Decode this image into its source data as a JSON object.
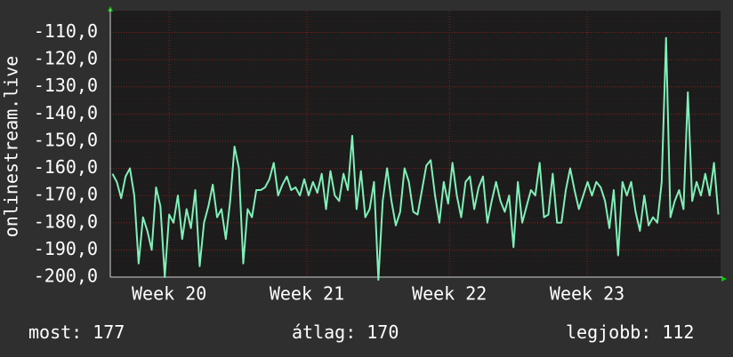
{
  "chart_data": {
    "type": "line",
    "ylabel": "onlinestream.live",
    "series": [
      {
        "name": "onlinestream.live",
        "color": "#80f0b8",
        "values": [
          -162,
          -165,
          -171,
          -163,
          -160,
          -170,
          -195,
          -178,
          -183,
          -190,
          -167,
          -174,
          -200,
          -177,
          -180,
          -170,
          -186,
          -175,
          -182,
          -168,
          -196,
          -180,
          -174,
          -166,
          -178,
          -175,
          -186,
          -172,
          -152,
          -160,
          -195,
          -175,
          -178,
          -168,
          -168,
          -167,
          -164,
          -158,
          -170,
          -166,
          -163,
          -168,
          -167,
          -170,
          -164,
          -170,
          -165,
          -169,
          -162,
          -175,
          -161,
          -170,
          -172,
          -162,
          -168,
          -148,
          -175,
          -161,
          -178,
          -175,
          -165,
          -201,
          -172,
          -160,
          -172,
          -181,
          -176,
          -160,
          -165,
          -176,
          -177,
          -168,
          -159,
          -157,
          -170,
          -180,
          -165,
          -173,
          -158,
          -170,
          -178,
          -165,
          -163,
          -175,
          -167,
          -163,
          -180,
          -172,
          -165,
          -172,
          -176,
          -170,
          -189,
          -165,
          -180,
          -174,
          -168,
          -170,
          -158,
          -178,
          -177,
          -162,
          -180,
          -180,
          -168,
          -160,
          -168,
          -175,
          -170,
          -165,
          -170,
          -165,
          -167,
          -172,
          -182,
          -168,
          -192,
          -165,
          -170,
          -165,
          -176,
          -183,
          -170,
          -181,
          -178,
          -180,
          -165,
          -112,
          -178,
          -172,
          -168,
          -175,
          -132,
          -172,
          -165,
          -170,
          -162,
          -170,
          -158,
          -177
        ]
      }
    ],
    "xlim": [
      0,
      140
    ],
    "xticks": [
      {
        "value": 13.5,
        "label": "Week 20"
      },
      {
        "value": 45.1,
        "label": "Week 21"
      },
      {
        "value": 77.8,
        "label": "Week 22"
      },
      {
        "value": 109.4,
        "label": "Week 23"
      }
    ],
    "ylim": [
      -200,
      -102
    ],
    "yticks": [
      {
        "value": -110,
        "label": "-110,0"
      },
      {
        "value": -120,
        "label": "-120,0"
      },
      {
        "value": -130,
        "label": "-130,0"
      },
      {
        "value": -140,
        "label": "-140,0"
      },
      {
        "value": -150,
        "label": "-150,0"
      },
      {
        "value": -160,
        "label": "-160,0"
      },
      {
        "value": -170,
        "label": "-170,0"
      },
      {
        "value": -180,
        "label": "-180,0"
      },
      {
        "value": -190,
        "label": "-190,0"
      },
      {
        "value": -200,
        "label": "-200,0"
      }
    ],
    "grid": true
  },
  "stats": [
    {
      "label": "most:",
      "value": 177
    },
    {
      "label": "átlag:",
      "value": 170
    },
    {
      "label": "legjobb:",
      "value": 112
    }
  ]
}
